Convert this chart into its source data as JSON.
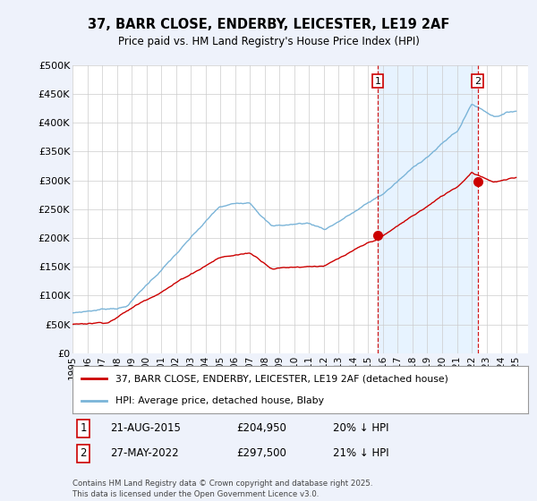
{
  "title": "37, BARR CLOSE, ENDERBY, LEICESTER, LE19 2AF",
  "subtitle": "Price paid vs. HM Land Registry's House Price Index (HPI)",
  "ylabel_ticks": [
    "£0",
    "£50K",
    "£100K",
    "£150K",
    "£200K",
    "£250K",
    "£300K",
    "£350K",
    "£400K",
    "£450K",
    "£500K"
  ],
  "ytick_vals": [
    0,
    50000,
    100000,
    150000,
    200000,
    250000,
    300000,
    350000,
    400000,
    450000,
    500000
  ],
  "ylim": [
    0,
    500000
  ],
  "hpi_color": "#7ab4d8",
  "price_color": "#cc0000",
  "vline_color": "#cc0000",
  "shade_color": "#ddeeff",
  "legend_line1": "37, BARR CLOSE, ENDERBY, LEICESTER, LE19 2AF (detached house)",
  "legend_line2": "HPI: Average price, detached house, Blaby",
  "annotation1_num": "1",
  "annotation1_date": "21-AUG-2015",
  "annotation1_price": "£204,950",
  "annotation1_hpi": "20% ↓ HPI",
  "annotation2_num": "2",
  "annotation2_date": "27-MAY-2022",
  "annotation2_price": "£297,500",
  "annotation2_hpi": "21% ↓ HPI",
  "footer": "Contains HM Land Registry data © Crown copyright and database right 2025.\nThis data is licensed under the Open Government Licence v3.0.",
  "background_color": "#eef2fb",
  "plot_bg_color": "#ffffff",
  "x_start_year": 1995,
  "x_end_year": 2025,
  "transaction1_year": 2015.65,
  "transaction2_year": 2022.4,
  "transaction1_price": 204950,
  "transaction2_price": 297500
}
